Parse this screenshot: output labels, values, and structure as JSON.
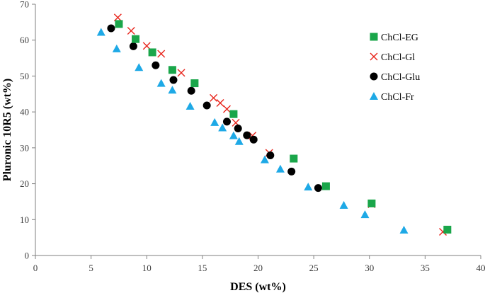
{
  "chart_data": {
    "type": "scatter",
    "title": "",
    "xlabel": "DES (wt%)",
    "ylabel": "Pluronic 10R5 (wt%)",
    "xlim": [
      0,
      40
    ],
    "ylim": [
      0,
      70
    ],
    "x_ticks": [
      0,
      5,
      10,
      15,
      20,
      25,
      30,
      35,
      40
    ],
    "y_ticks": [
      0,
      10,
      20,
      30,
      40,
      50,
      60,
      70
    ],
    "grid": false,
    "legend_position": "top-right",
    "series": [
      {
        "name": "ChCl-EG",
        "marker": "square",
        "color": "#1aa64a",
        "points": [
          [
            7.5,
            64.5
          ],
          [
            9.0,
            60.3
          ],
          [
            10.5,
            56.6
          ],
          [
            12.3,
            51.7
          ],
          [
            14.3,
            48.0
          ],
          [
            17.8,
            39.4
          ],
          [
            23.2,
            27.0
          ],
          [
            26.1,
            19.3
          ],
          [
            30.2,
            14.5
          ],
          [
            37.0,
            7.2
          ]
        ]
      },
      {
        "name": "ChCl-Gl",
        "marker": "x",
        "color": "#e8251c",
        "points": [
          [
            7.4,
            66.3
          ],
          [
            8.6,
            62.6
          ],
          [
            10.0,
            58.4
          ],
          [
            11.3,
            56.2
          ],
          [
            13.1,
            50.9
          ],
          [
            16.0,
            43.9
          ],
          [
            16.6,
            42.5
          ],
          [
            17.2,
            40.8
          ],
          [
            18.0,
            37.0
          ],
          [
            19.5,
            33.4
          ],
          [
            21.0,
            28.6
          ],
          [
            30.2,
            14.3
          ],
          [
            36.6,
            6.6
          ]
        ]
      },
      {
        "name": "ChCl-Glu",
        "marker": "circle",
        "color": "#000000",
        "points": [
          [
            6.8,
            63.3
          ],
          [
            8.8,
            58.3
          ],
          [
            10.8,
            53.0
          ],
          [
            12.4,
            48.9
          ],
          [
            14.0,
            45.9
          ],
          [
            15.4,
            41.8
          ],
          [
            17.2,
            37.3
          ],
          [
            18.2,
            35.4
          ],
          [
            19.0,
            33.5
          ],
          [
            19.6,
            32.3
          ],
          [
            21.1,
            27.9
          ],
          [
            23.0,
            23.4
          ],
          [
            25.4,
            18.8
          ]
        ]
      },
      {
        "name": "ChCl-Fr",
        "marker": "triangle",
        "color": "#1ea9e6",
        "points": [
          [
            5.9,
            62.2
          ],
          [
            7.3,
            57.6
          ],
          [
            9.3,
            52.4
          ],
          [
            11.3,
            48.0
          ],
          [
            12.3,
            46.1
          ],
          [
            13.9,
            41.6
          ],
          [
            16.1,
            37.1
          ],
          [
            16.8,
            35.6
          ],
          [
            17.8,
            33.4
          ],
          [
            18.3,
            31.8
          ],
          [
            20.6,
            26.7
          ],
          [
            22.0,
            24.1
          ],
          [
            24.5,
            19.1
          ],
          [
            27.7,
            14.0
          ],
          [
            29.6,
            11.4
          ],
          [
            33.1,
            7.1
          ]
        ]
      }
    ]
  }
}
